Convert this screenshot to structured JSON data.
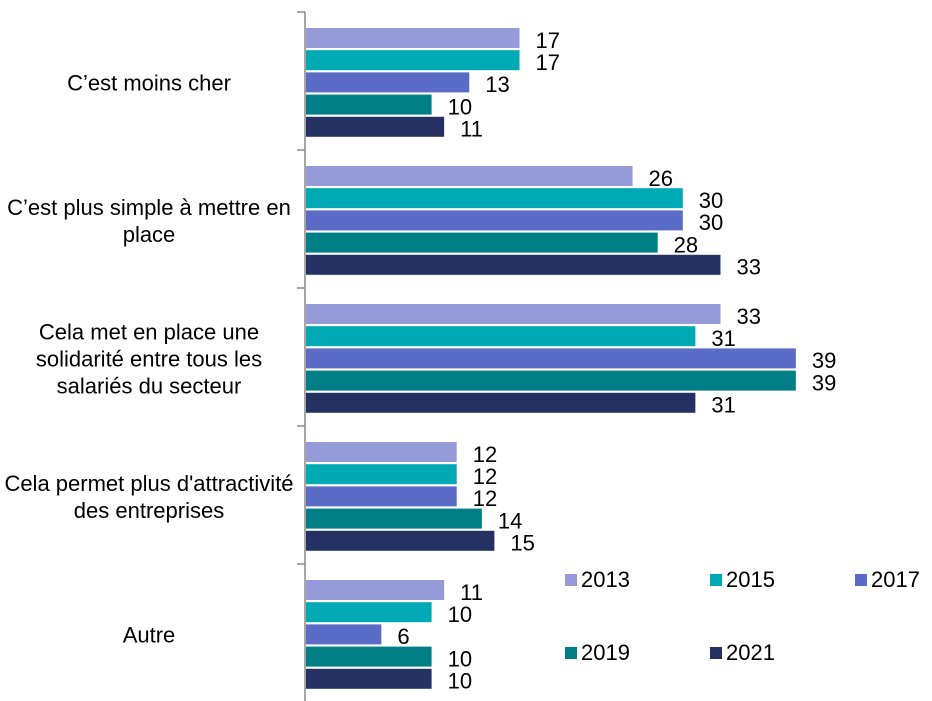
{
  "chart_data": {
    "type": "bar",
    "orientation": "horizontal",
    "categories": [
      "C’est moins cher",
      "C’est plus simple à mettre en place",
      "Cela met en place une solidarité entre tous les salariés du secteur",
      "Cela permet plus d'attractivité des entreprises",
      "Autre"
    ],
    "series": [
      {
        "name": "2013",
        "color": "#959bd8",
        "values": [
          17,
          26,
          33,
          12,
          11
        ]
      },
      {
        "name": "2015",
        "color": "#00aab5",
        "values": [
          17,
          30,
          31,
          12,
          10
        ]
      },
      {
        "name": "2017",
        "color": "#5b6cc6",
        "values": [
          13,
          30,
          39,
          12,
          6
        ]
      },
      {
        "name": "2019",
        "color": "#007f86",
        "values": [
          10,
          28,
          39,
          14,
          10
        ]
      },
      {
        "name": "2021",
        "color": "#253163",
        "values": [
          11,
          33,
          31,
          15,
          10
        ]
      }
    ],
    "legend": "bottom-right"
  }
}
